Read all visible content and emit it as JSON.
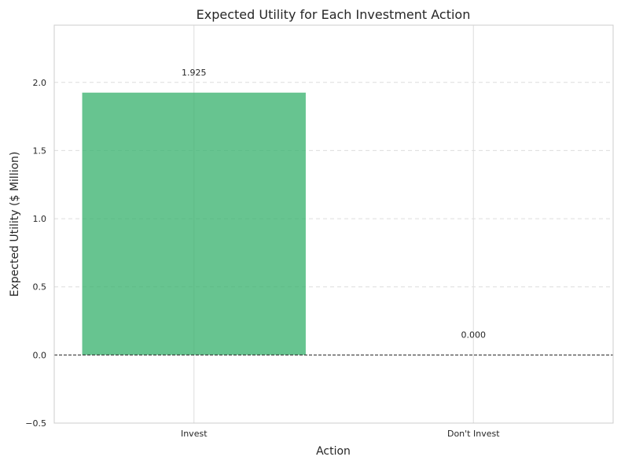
{
  "chart_data": {
    "type": "bar",
    "title": "Expected Utility for Each Investment Action",
    "xlabel": "Action",
    "ylabel": "Expected Utility ($ Million)",
    "categories": [
      "Invest",
      "Don't Invest"
    ],
    "values": [
      1.925,
      0.0
    ],
    "value_labels": [
      "1.925",
      "0.000"
    ],
    "ylim": [
      -0.5,
      2.42
    ],
    "yticks": [
      -0.5,
      0.0,
      0.5,
      1.0,
      1.5,
      2.0
    ],
    "ytick_labels": [
      "−0.5",
      "0.0",
      "0.5",
      "1.0",
      "1.5",
      "2.0"
    ],
    "grid": true,
    "reference_line": 0,
    "colors": {
      "bar": "#3cb371",
      "axis": "#cccccc",
      "grid": "#dddddd",
      "reference_line": "#000000"
    }
  }
}
